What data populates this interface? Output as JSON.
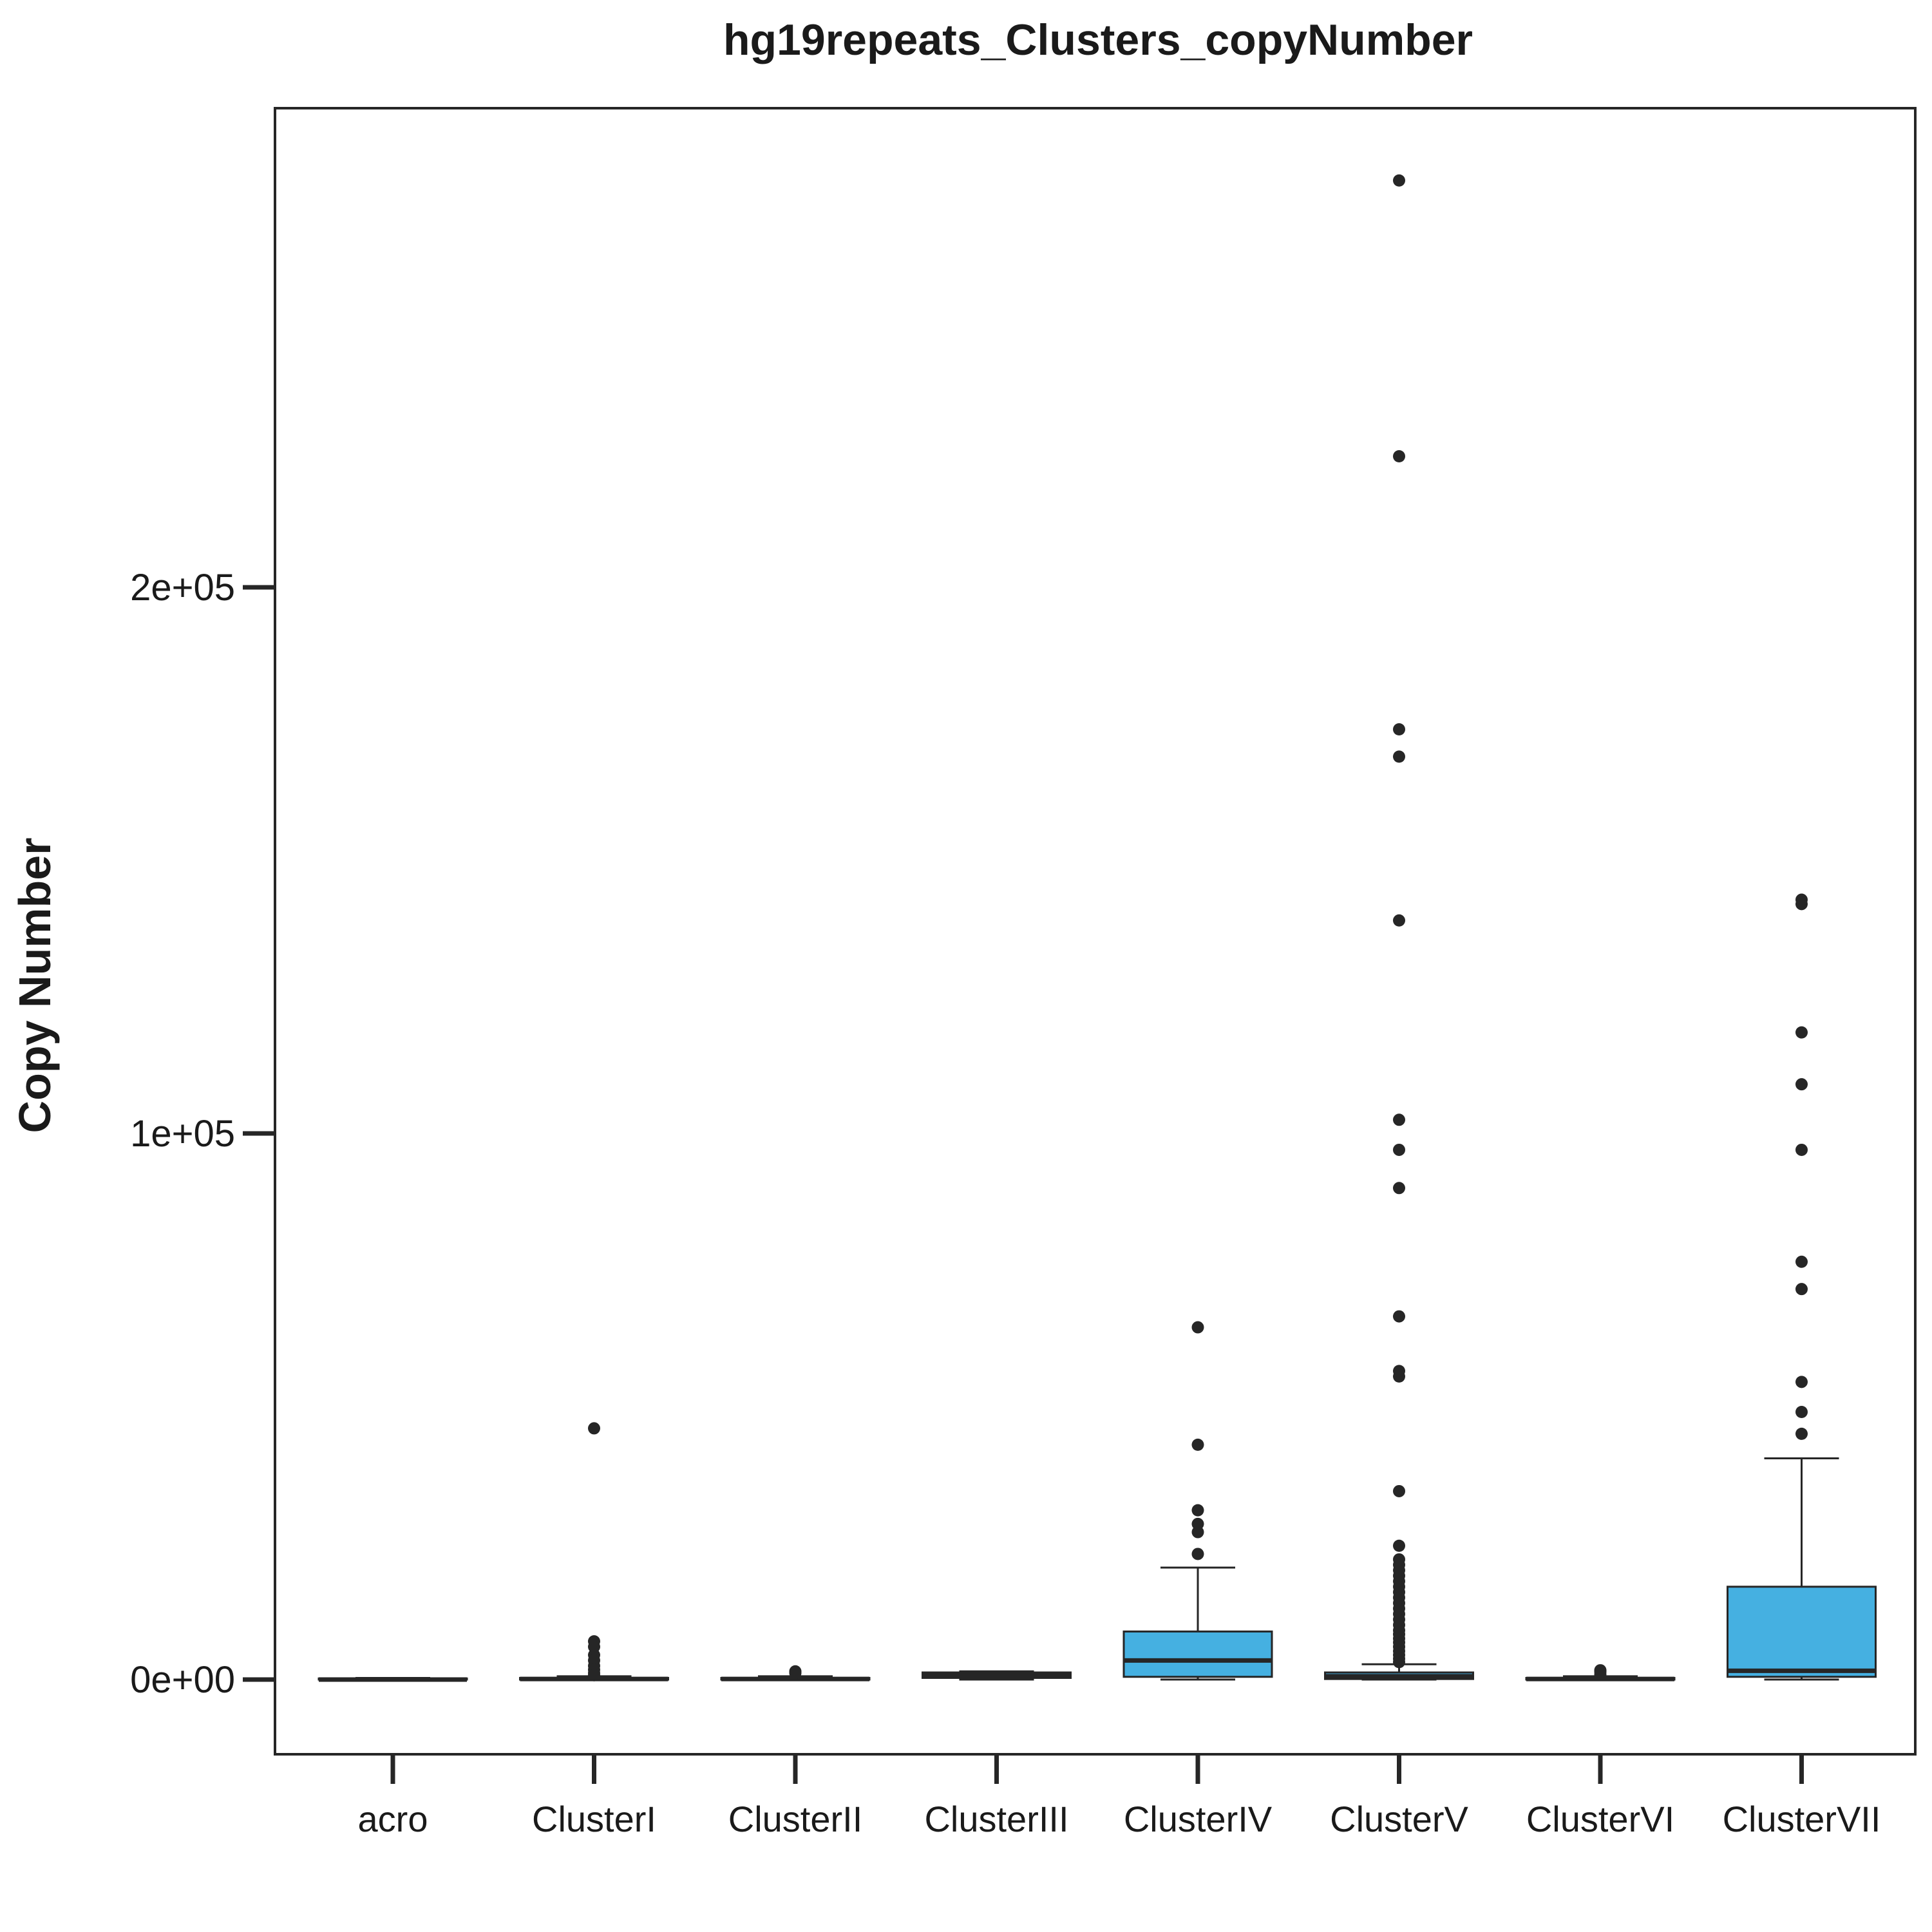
{
  "chart_data": {
    "type": "box",
    "title": "hg19repeats_Clusters_copyNumber",
    "xlabel": "",
    "ylabel": "Copy Number",
    "ylim": [
      -13000,
      288000
    ],
    "yticks": [
      {
        "value": 0,
        "label": "0e+00"
      },
      {
        "value": 100000,
        "label": "1e+05"
      },
      {
        "value": 200000,
        "label": "2e+05"
      }
    ],
    "grid": false,
    "box_color": "#45b0e1",
    "line_color": "#262626",
    "categories": [
      "acro",
      "ClusterI",
      "ClusterII",
      "ClusterIII",
      "ClusterIV",
      "ClusterV",
      "ClusterVI",
      "ClusterVII"
    ],
    "boxes": [
      {
        "category": "acro",
        "whisker_low": 0,
        "q1": 0,
        "median": 0,
        "q3": 200,
        "whisker_high": 300,
        "outliers": []
      },
      {
        "category": "ClusterI",
        "whisker_low": 0,
        "q1": 0,
        "median": 100,
        "q3": 300,
        "whisker_high": 600,
        "outliers": [
          7000,
          6000,
          4500,
          3500,
          2500,
          1800,
          1200,
          800,
          46000
        ]
      },
      {
        "category": "ClusterII",
        "whisker_low": 0,
        "q1": 0,
        "median": 100,
        "q3": 300,
        "whisker_high": 600,
        "outliers": [
          1200,
          1500
        ]
      },
      {
        "category": "ClusterIII",
        "whisker_low": 0,
        "q1": 300,
        "median": 800,
        "q3": 1300,
        "whisker_high": 1500,
        "outliers": []
      },
      {
        "category": "ClusterIV",
        "whisker_low": 0,
        "q1": 500,
        "median": 3500,
        "q3": 8800,
        "whisker_high": 20500,
        "outliers": [
          23000,
          27000,
          28500,
          31000,
          43000,
          64500
        ]
      },
      {
        "category": "ClusterV",
        "whisker_low": 0,
        "q1": 100,
        "median": 600,
        "q3": 1300,
        "whisker_high": 2800,
        "outliers": [
          3200,
          3800,
          4500,
          5200,
          6000,
          6800,
          7500,
          8300,
          9000,
          10000,
          11000,
          12000,
          13000,
          14000,
          15000,
          16000,
          17000,
          18000,
          19000,
          20000,
          21000,
          22000,
          24500,
          34500,
          55500,
          56500,
          66500,
          90000,
          97000,
          102500,
          139000,
          169000,
          174000,
          224000,
          274500
        ]
      },
      {
        "category": "ClusterVI",
        "whisker_low": 0,
        "q1": 0,
        "median": 100,
        "q3": 300,
        "whisker_high": 600,
        "outliers": [
          900,
          1400,
          1700
        ]
      },
      {
        "category": "ClusterVII",
        "whisker_low": 0,
        "q1": 500,
        "median": 1600,
        "q3": 17000,
        "whisker_high": 40500,
        "outliers": [
          45000,
          49000,
          54500,
          71500,
          76500,
          97000,
          109000,
          118500,
          142000,
          142800
        ]
      }
    ]
  }
}
